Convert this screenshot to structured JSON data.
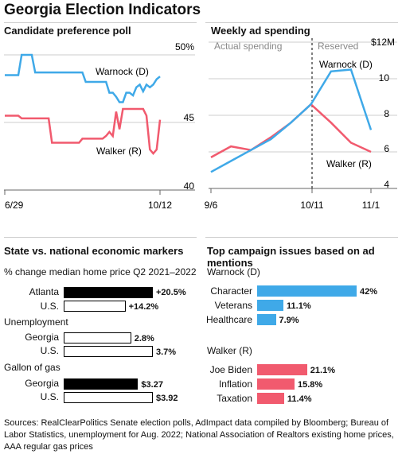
{
  "title": "Georgia Election Indicators",
  "colors": {
    "warnock": "#3fa9e8",
    "walker": "#f15a6e",
    "black": "#000000",
    "grid": "#cccccc"
  },
  "poll": {
    "title": "Candidate preference poll",
    "x_labels": [
      "6/29",
      "10/12"
    ],
    "y_ticks": [
      "50%",
      "45",
      "40"
    ],
    "warnock_label": "Warnock (D)",
    "walker_label": "Walker (R)"
  },
  "ads": {
    "title": "Weekly ad spending",
    "actual_label": "Actual spending",
    "reserved_label": "Reserved",
    "unit": "$12M",
    "x_labels": [
      "9/6",
      "10/11",
      "11/1"
    ],
    "y_ticks": [
      "10",
      "8",
      "6",
      "4"
    ],
    "warnock_label": "Warnock (D)",
    "walker_label": "Walker (R)"
  },
  "econ": {
    "title": "State vs. national economic markers",
    "groups": [
      {
        "label": "% change median home price Q2 2021–2022",
        "rows": [
          {
            "name": "Atlanta",
            "value": "+20.5%",
            "num": 20.5,
            "style": "black"
          },
          {
            "name": "U.S.",
            "value": "+14.2%",
            "num": 14.2,
            "style": "white"
          }
        ]
      },
      {
        "label": "Unemployment",
        "rows": [
          {
            "name": "Georgia",
            "value": "2.8%",
            "num": 2.8,
            "style": "white"
          },
          {
            "name": "U.S.",
            "value": "3.7%",
            "num": 3.7,
            "style": "white"
          }
        ]
      },
      {
        "label": "Gallon of gas",
        "rows": [
          {
            "name": "Georgia",
            "value": "$3.27",
            "num": 3.27,
            "style": "black"
          },
          {
            "name": "U.S.",
            "value": "$3.92",
            "num": 3.92,
            "style": "white"
          }
        ]
      }
    ]
  },
  "issues": {
    "title": "Top campaign issues based on ad mentions",
    "groups": [
      {
        "label": "Warnock (D)",
        "color": "#3fa9e8",
        "rows": [
          {
            "name": "Character",
            "value": "42%",
            "num": 42
          },
          {
            "name": "Veterans",
            "value": "11.1%",
            "num": 11.1
          },
          {
            "name": "Healthcare",
            "value": "7.9%",
            "num": 7.9
          }
        ]
      },
      {
        "label": "Walker (R)",
        "color": "#f15a6e",
        "rows": [
          {
            "name": "Joe Biden",
            "value": "21.1%",
            "num": 21.1
          },
          {
            "name": "Inflation",
            "value": "15.8%",
            "num": 15.8
          },
          {
            "name": "Taxation",
            "value": "11.4%",
            "num": 11.4
          }
        ]
      }
    ]
  },
  "source": "Sources: RealClearPolitics Senate election polls, AdImpact data compiled by Bloomberg; Bureau of Labor Statistics, unemployment for Aug. 2022; National Association of Realtors existing home prices, AAA regular gas prices",
  "chart_data": [
    {
      "type": "line",
      "title": "Candidate preference poll",
      "ylim": [
        40,
        50
      ],
      "x_labels": [
        "6/29",
        "10/12"
      ],
      "series": [
        {
          "name": "Warnock (D)",
          "values": [
            48.5,
            48.5,
            48.5,
            48.5,
            48.5,
            50.0,
            50.0,
            50.0,
            50.0,
            48.7,
            48.7,
            48.7,
            48.7,
            48.7,
            48.7,
            48.7,
            48.7,
            48.7,
            48.7,
            48.7,
            48.7,
            48.7,
            48.7,
            48.7,
            48.0,
            48.0,
            48.0,
            48.0,
            48.0,
            48.0,
            48.0,
            47.2,
            47.2,
            46.9,
            46.5,
            46.5,
            47.2,
            47.2,
            47.0,
            47.6,
            47.8,
            47.3,
            47.8,
            47.6,
            47.8,
            48.2,
            48.4
          ]
        },
        {
          "name": "Walker (R)",
          "values": [
            45.5,
            45.5,
            45.5,
            45.5,
            45.5,
            45.3,
            45.3,
            45.3,
            45.3,
            45.3,
            45.3,
            45.3,
            45.3,
            45.3,
            43.5,
            43.5,
            43.5,
            43.5,
            43.5,
            43.5,
            43.5,
            43.5,
            43.5,
            43.8,
            43.8,
            43.8,
            43.8,
            43.8,
            43.8,
            43.8,
            44.0,
            44.3,
            44.0,
            45.8,
            44.5,
            46.0,
            46.0,
            46.0,
            46.0,
            46.0,
            46.0,
            46.0,
            45.5,
            43.0,
            42.7,
            43.0,
            45.2
          ]
        }
      ]
    },
    {
      "type": "line",
      "title": "Weekly ad spending",
      "ylabel": "$12M",
      "ylim": [
        4,
        12
      ],
      "x": [
        "9/6",
        "",
        "",
        "",
        "",
        "10/11",
        "",
        "",
        "11/1"
      ],
      "series": [
        {
          "name": "Warnock (D)",
          "values": [
            4.9,
            5.5,
            6.1,
            6.7,
            7.6,
            8.6,
            10.4,
            10.5,
            7.2
          ]
        },
        {
          "name": "Walker (R)",
          "values": [
            5.7,
            6.3,
            6.1,
            6.8,
            7.6,
            8.6,
            7.6,
            6.5,
            6.0
          ]
        }
      ]
    },
    {
      "type": "bar",
      "title": "State vs. national economic markers",
      "categories": [
        "Atlanta",
        "U.S.",
        "Georgia",
        "U.S.",
        "Georgia",
        "U.S."
      ],
      "values": [
        20.5,
        14.2,
        2.8,
        3.7,
        3.27,
        3.92
      ]
    },
    {
      "type": "bar",
      "title": "Top campaign issues based on ad mentions",
      "categories": [
        "Character",
        "Veterans",
        "Healthcare",
        "Joe Biden",
        "Inflation",
        "Taxation"
      ],
      "values": [
        42,
        11.1,
        7.9,
        21.1,
        15.8,
        11.4
      ]
    }
  ]
}
